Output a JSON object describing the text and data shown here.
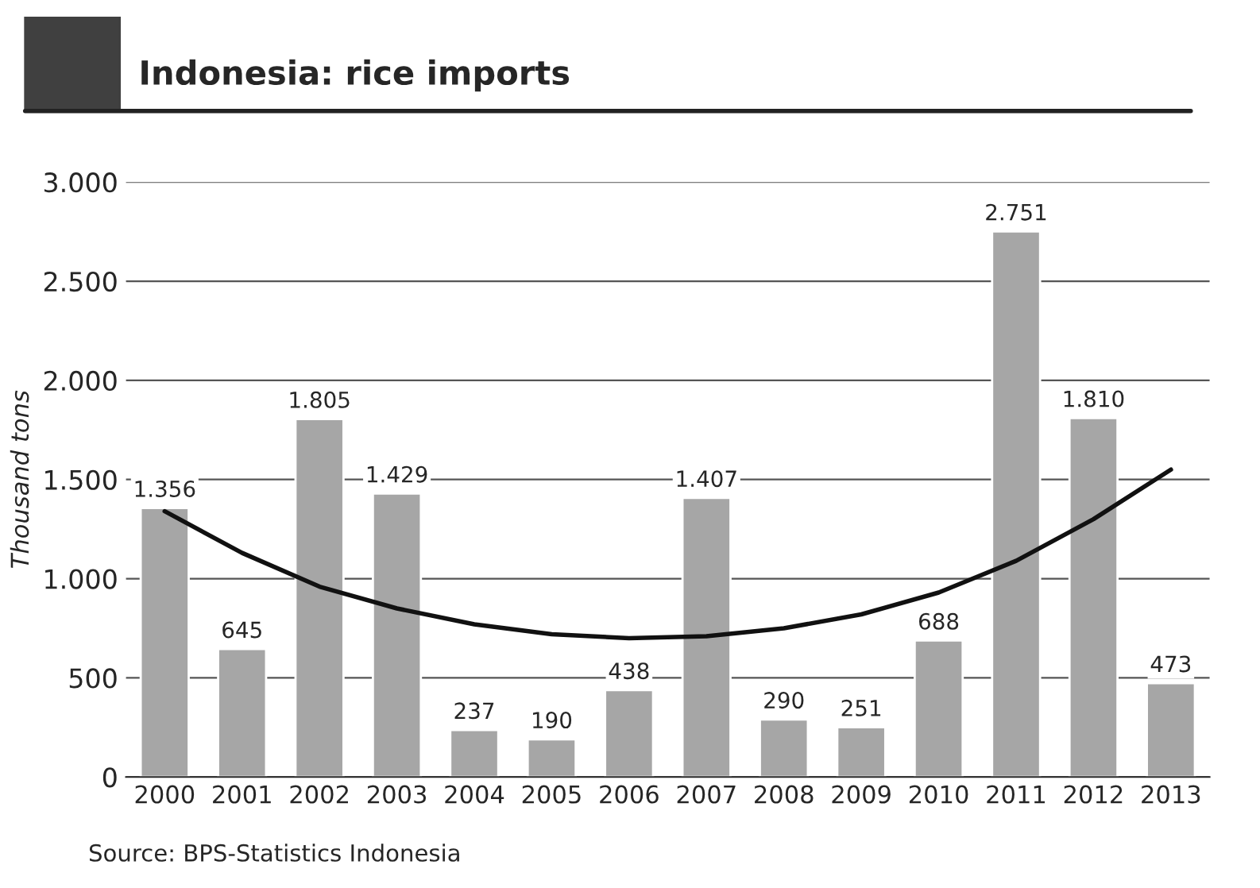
{
  "chart_data": {
    "type": "bar",
    "title": "Indonesia: rice imports",
    "ylabel": "Thousand tons",
    "categories": [
      "2000",
      "2001",
      "2002",
      "2003",
      "2004",
      "2005",
      "2006",
      "2007",
      "2008",
      "2009",
      "2010",
      "2011",
      "2012",
      "2013"
    ],
    "series": [
      {
        "color": "#a6a6a6",
        "values": [
          1356,
          645,
          1805,
          1429,
          237,
          190,
          438,
          1407,
          290,
          251,
          688,
          2751,
          1810,
          473
        ],
        "value_labels": [
          "1.356",
          "645",
          "1.805",
          "1.429",
          "237",
          "190",
          "438",
          "1.407",
          "290",
          "251",
          "688",
          "2.751",
          "1.810",
          "473"
        ]
      },
      {
        "type": "line",
        "color": "#111111",
        "values": [
          1340,
          1130,
          960,
          850,
          770,
          720,
          700,
          710,
          750,
          820,
          930,
          1090,
          1300,
          1550
        ]
      }
    ],
    "ylim": [
      0,
      3000
    ],
    "yticks": [
      {
        "value": 0,
        "label": "0"
      },
      {
        "value": 500,
        "label": "500"
      },
      {
        "value": 1000,
        "label": "1.000"
      },
      {
        "value": 1500,
        "label": "1.500"
      },
      {
        "value": 2000,
        "label": "2.000"
      },
      {
        "value": 2500,
        "label": "2.500"
      },
      {
        "value": 3000,
        "label": "3.000"
      }
    ],
    "grid": "y",
    "legend": false,
    "annotations": [
      "Source: BPS-Statistics Indonesia"
    ]
  }
}
